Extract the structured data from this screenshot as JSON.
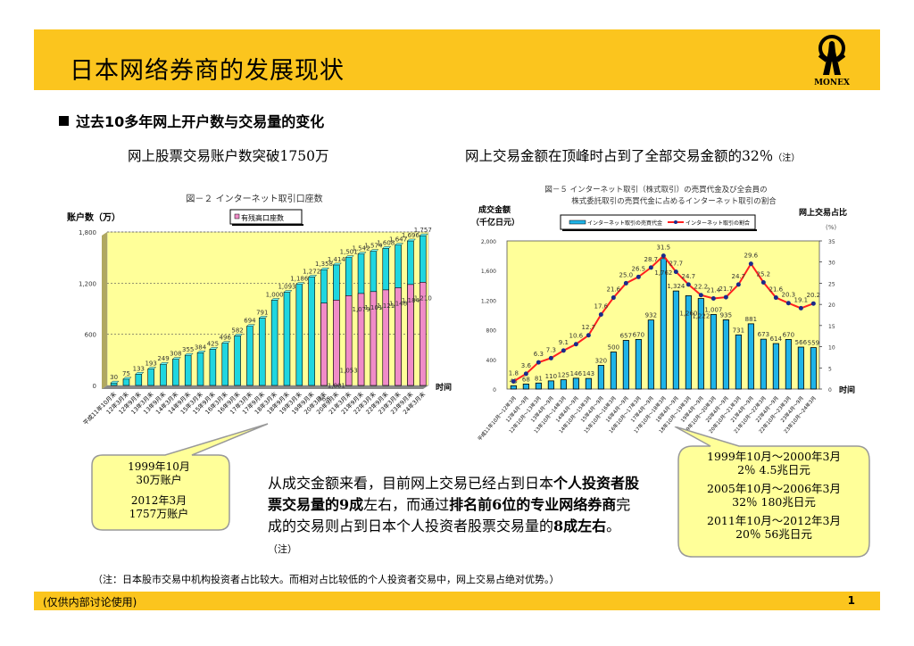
{
  "header": {
    "title": "日本网络券商的发展现状",
    "logo_text": "MONEX",
    "bg_color": "#fbc51e"
  },
  "section": {
    "heading": "过去10多年网上开户数与交易量的变化",
    "left_subtitle": "网上股票交易账户数突破1750万",
    "right_subtitle": "网上交易金额在顶峰时占到了全部交易金额的32％",
    "right_subtitle_note": "（注）"
  },
  "chart_data": [
    {
      "type": "bar",
      "title": "図－２ インターネット取引口座数",
      "ylabel": "账户数（万）",
      "xlabel": "时间",
      "legend": [
        "有残高口座数"
      ],
      "legend_position": "top",
      "ylim": [
        0,
        1800
      ],
      "yticks": [
        "0",
        "600",
        "1,200",
        "1,800"
      ],
      "categories": [
        "平成11年10月末",
        "12年3月末",
        "12年9月末",
        "13年3月末",
        "13年9月末",
        "14年3月末",
        "14年9月末",
        "15年3月末",
        "15年9月末",
        "16年3月末",
        "16年9月末",
        "17年3月末",
        "17年9月末",
        "18年3月末",
        "18年9月末",
        "19年3月末",
        "19年9月末",
        "20年3月末",
        "20年9月末",
        "21年3月末",
        "21年9月末",
        "22年3月末",
        "22年9月末",
        "23年3月末",
        "23年9月末",
        "24年3月末"
      ],
      "series": [
        {
          "name": "インターネット取引口座数",
          "color": "#1fd6e0",
          "values": [
            30,
            75,
            133,
            193,
            249,
            308,
            355,
            384,
            425,
            496,
            582,
            694,
            791,
            1000,
            1093,
            1186,
            1272,
            1358,
            1414,
            1501,
            1542,
            1574,
            1608,
            1647,
            1696,
            1757
          ],
          "labels": [
            "30",
            "75",
            "133",
            "193",
            "249",
            "308",
            "355",
            "384",
            "425",
            "496",
            "582",
            "694",
            "791",
            "1,000",
            "1,093",
            "1,186",
            "1,272",
            "1,358",
            "1,414",
            "1,501",
            "1,542",
            "1,574",
            "1,608",
            "1,647",
            "1,696",
            "1,757"
          ]
        },
        {
          "name": "有残高口座数",
          "color": "#f08cc8",
          "values": [
            null,
            null,
            null,
            null,
            null,
            null,
            null,
            null,
            null,
            null,
            null,
            null,
            null,
            null,
            null,
            null,
            null,
            966,
            1001,
            1053,
            1079,
            1101,
            1121,
            1146,
            1184,
            1210
          ],
          "labels": [
            "",
            "",
            "",
            "",
            "",
            "",
            "",
            "",
            "",
            "",
            "",
            "",
            "",
            "",
            "",
            "",
            "",
            "966",
            "1,001",
            "1,053",
            "1,079",
            "1,101",
            "1,121",
            "1,146",
            "1,184",
            "1,210"
          ]
        }
      ],
      "grid": true,
      "plot_bg": "#ffff99"
    },
    {
      "type": "bar",
      "title": "図－５ インターネット取引（株式取引）の売買代金及び全会員の株式委託取引の売買代金に占めるインターネット取引の割合",
      "title_line1": "図－５ インターネット取引（株式取引）の売買代金及び全会員の",
      "title_line2": "株式委託取引の売買代金に占めるインターネット取引の割合",
      "ylabel": "成交金额（千亿日元）",
      "ylabel_line1": "成交金额",
      "ylabel_line2": "（千亿日元）",
      "y2label": "网上交易占比",
      "y2unit": "(%)",
      "xlabel": "时间",
      "legend": [
        "インターネット取引の売買代金",
        "インターネット取引の割合"
      ],
      "legend_position": "top",
      "ylim": [
        0,
        2000
      ],
      "yticks": [
        "0",
        "400",
        "800",
        "1,200",
        "1,600",
        "2,000"
      ],
      "y2lim": [
        0,
        35
      ],
      "y2ticks": [
        "0",
        "5",
        "10",
        "15",
        "20",
        "25",
        "30",
        "35"
      ],
      "categories": [
        "平成11年10月～12年3月",
        "12年4月～9月",
        "12年10月～13年3月",
        "13年4月～9月",
        "13年10月～14年3月",
        "14年4月～9月",
        "14年10月～15年3月",
        "15年4月～9月",
        "15年10月～16年3月",
        "16年4月～9月",
        "16年10月～17年3月",
        "17年4月～9月",
        "17年10月～18年3月",
        "18年4月～9月",
        "18年10月～19年3月",
        "19年4月～9月",
        "19年10月～20年3月",
        "20年4月～9月",
        "20年10月～21年3月",
        "21年4月～9月",
        "21年10月～22年3月",
        "22年4月～9月",
        "22年10月～23年3月",
        "23年4月～9月",
        "23年10月～24年3月"
      ],
      "series": [
        {
          "name": "インターネット取引の売買代金",
          "type": "bar",
          "color": "#1fb4e8",
          "values": [
            45,
            68,
            81,
            110,
            125,
            146,
            143,
            320,
            500,
            657,
            670,
            932,
            1762,
            1324,
            1260,
            1222,
            1007,
            935,
            731,
            881,
            673,
            614,
            670,
            566,
            559
          ],
          "labels": [
            "45",
            "68",
            "81",
            "110",
            "125",
            "146",
            "143",
            "320",
            "500",
            "657",
            "670",
            "932",
            "1,762",
            "1,324",
            "1,260",
            "1,222",
            "1,007",
            "935",
            "731",
            "881",
            "673",
            "614",
            "670",
            "566",
            "559"
          ]
        },
        {
          "name": "インターネット取引の割合",
          "type": "line",
          "axis": "right",
          "color": "#ff2020",
          "marker_color": "#1a2a8a",
          "values": [
            1.8,
            3.6,
            6.3,
            7.3,
            9.1,
            10.6,
            12.7,
            17.6,
            21.6,
            25.0,
            26.5,
            28.7,
            31.5,
            27.7,
            24.7,
            22.2,
            21.4,
            21.7,
            24.7,
            29.6,
            25.2,
            21.6,
            20.3,
            19.1,
            20.2
          ]
        }
      ],
      "plot_bg": "#ffff99"
    }
  ],
  "callout_left": {
    "line1": "1999年10月",
    "line2": "30万账户",
    "line3": "2012年3月",
    "line4": "1757万账户"
  },
  "callout_right": {
    "p1_line1": "1999年10月～2000年3月",
    "p1_line2": "2％  4.5兆日元",
    "p2_line1": "2005年10月～2006年3月",
    "p2_line2": "32％  180兆日元",
    "p3_line1": "2011年10月～2012年3月",
    "p3_line2": "20％  56兆日元"
  },
  "body": {
    "seg1": "从成交金额来看，目前网上交易已经占到日本",
    "seg2": "个人投资者股票交易量的9成",
    "seg3": "左右，而通过",
    "seg4": "排名前6位的专业网络券商",
    "seg5": "完成的交易则占到日本个人投资者股票交易量的",
    "seg6": "8成左右",
    "seg7": "。",
    "note": "（注）"
  },
  "footnote": "（注：日本股市交易中机构投资者占比较大。而相对占比较低的个人投资者交易中，网上交易占绝对优势。）",
  "footer": {
    "label": "(仅供内部讨论使用)",
    "page_number": "1"
  }
}
